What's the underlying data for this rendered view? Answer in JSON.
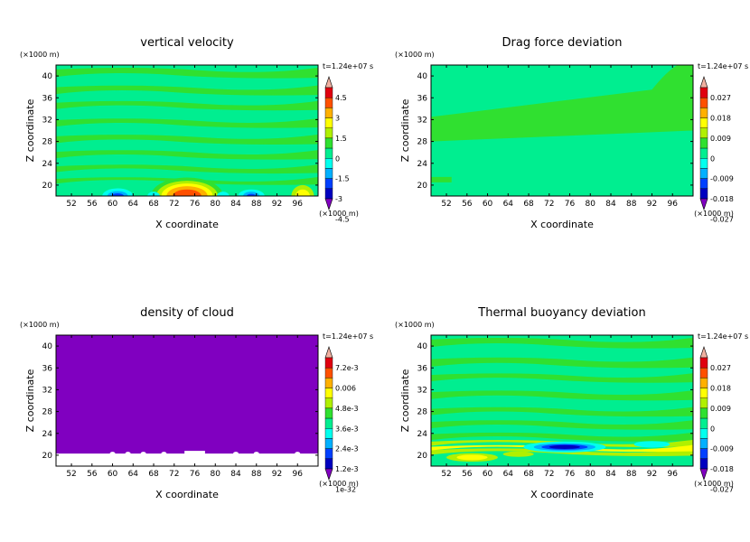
{
  "chart_data": [
    {
      "type": "heatmap",
      "title": "vertical velocity",
      "xlabel": "X coordinate",
      "ylabel": "Z coordinate",
      "x_unit": "(×1000 m)",
      "y_unit": "(×1000 m)",
      "time_label": "t=1.24e+07 s",
      "xlim": [
        49,
        100
      ],
      "ylim": [
        18,
        42
      ],
      "x_ticks": [
        "52",
        "56",
        "60",
        "64",
        "68",
        "72",
        "76",
        "80",
        "84",
        "88",
        "92",
        "96"
      ],
      "y_ticks": [
        "20",
        "24",
        "28",
        "32",
        "36",
        "40"
      ],
      "colorbar_labels": [
        "4.5",
        "3",
        "1.5",
        "0",
        "-1.5",
        "-3",
        "-4.5"
      ],
      "colorbar_colors": [
        "#f0b0a0",
        "#e00010",
        "#ff5000",
        "#ffb000",
        "#ffff00",
        "#b0f000",
        "#30e030",
        "#00ee90",
        "#00ffee",
        "#00b0ff",
        "#0040ff",
        "#0000c0",
        "#8000c0"
      ],
      "background_color": "#00ee90",
      "bands": [
        {
          "z": 40.6,
          "h": 1.2,
          "color": "#30e030"
        },
        {
          "z": 37.4,
          "h": 1.1,
          "color": "#30e030"
        },
        {
          "z": 34.6,
          "h": 1.0,
          "color": "#30e030"
        },
        {
          "z": 31.4,
          "h": 1.0,
          "color": "#30e030"
        },
        {
          "z": 28.4,
          "h": 1.1,
          "color": "#30e030"
        },
        {
          "z": 25.6,
          "h": 1.0,
          "color": "#30e030"
        },
        {
          "z": 23.0,
          "h": 0.9,
          "color": "#30e030"
        },
        {
          "z": 20.8,
          "h": 0.7,
          "color": "#30e030"
        }
      ],
      "blobs": [
        {
          "x": 74.5,
          "z": 18.0,
          "rx": 7.0,
          "rz": 3.4,
          "color": "#30e030"
        },
        {
          "x": 74.5,
          "z": 18.0,
          "rx": 6.0,
          "rz": 2.8,
          "color": "#b0f000"
        },
        {
          "x": 74.5,
          "z": 18.0,
          "rx": 5.0,
          "rz": 2.3,
          "color": "#ffff00"
        },
        {
          "x": 74.5,
          "z": 18.0,
          "rx": 4.0,
          "rz": 1.8,
          "color": "#ffb000"
        },
        {
          "x": 74.5,
          "z": 18.0,
          "rx": 2.8,
          "rz": 1.2,
          "color": "#ff5000"
        },
        {
          "x": 61.0,
          "z": 18.0,
          "rx": 3.0,
          "rz": 1.4,
          "color": "#00ffee"
        },
        {
          "x": 61.0,
          "z": 18.0,
          "rx": 2.0,
          "rz": 0.9,
          "color": "#00b0ff"
        },
        {
          "x": 61.0,
          "z": 18.0,
          "rx": 1.2,
          "rz": 0.5,
          "color": "#0040ff"
        },
        {
          "x": 87.0,
          "z": 18.0,
          "rx": 2.6,
          "rz": 1.2,
          "color": "#00ffee"
        },
        {
          "x": 87.0,
          "z": 18.0,
          "rx": 1.6,
          "rz": 0.8,
          "color": "#00b0ff"
        },
        {
          "x": 87.0,
          "z": 18.0,
          "rx": 0.9,
          "rz": 0.4,
          "color": "#0040ff"
        },
        {
          "x": 97.0,
          "z": 18.0,
          "rx": 2.2,
          "rz": 2.0,
          "color": "#b0f000"
        },
        {
          "x": 97.0,
          "z": 18.0,
          "rx": 1.4,
          "rz": 1.2,
          "color": "#ffff00"
        },
        {
          "x": 68.0,
          "z": 18.0,
          "rx": 1.2,
          "rz": 0.8,
          "color": "#00ffee"
        },
        {
          "x": 81.5,
          "z": 18.0,
          "rx": 1.2,
          "rz": 0.8,
          "color": "#00ffee"
        }
      ]
    },
    {
      "type": "heatmap",
      "title": "Drag force deviation",
      "xlabel": "X coordinate",
      "ylabel": "Z coordinate",
      "x_unit": "(×1000 m)",
      "y_unit": "(×1000 m)",
      "time_label": "t=1.24e+07 s",
      "xlim": [
        49,
        100
      ],
      "ylim": [
        18,
        42
      ],
      "x_ticks": [
        "52",
        "56",
        "60",
        "64",
        "68",
        "72",
        "76",
        "80",
        "84",
        "88",
        "92",
        "96"
      ],
      "y_ticks": [
        "20",
        "24",
        "28",
        "32",
        "36",
        "40"
      ],
      "colorbar_labels": [
        "0.027",
        "0.018",
        "0.009",
        "0",
        "-0.009",
        "-0.018",
        "-0.027"
      ],
      "colorbar_colors": [
        "#f0b0a0",
        "#e00010",
        "#ff5000",
        "#ffb000",
        "#ffff00",
        "#b0f000",
        "#30e030",
        "#00ee90",
        "#00ffee",
        "#00b0ff",
        "#0040ff",
        "#0000c0",
        "#8000c0"
      ],
      "background_color": "#00ee90",
      "bands": [],
      "blobs": []
    },
    {
      "type": "heatmap",
      "title": "density of cloud",
      "xlabel": "X coordinate",
      "ylabel": "Z coordinate",
      "x_unit": "(×1000 m)",
      "y_unit": "(×1000 m)",
      "time_label": "t=1.24e+07 s",
      "xlim": [
        49,
        100
      ],
      "ylim": [
        18,
        42
      ],
      "x_ticks": [
        "52",
        "56",
        "60",
        "64",
        "68",
        "72",
        "76",
        "80",
        "84",
        "88",
        "92",
        "96"
      ],
      "y_ticks": [
        "20",
        "24",
        "28",
        "32",
        "36",
        "40"
      ],
      "colorbar_labels": [
        "7.2e-3",
        "0.006",
        "4.8e-3",
        "3.6e-3",
        "2.4e-3",
        "1.2e-3",
        "1e-32"
      ],
      "colorbar_colors": [
        "#f0b0a0",
        "#e00010",
        "#ff5000",
        "#ffb000",
        "#ffff00",
        "#b0f000",
        "#30e030",
        "#00ee90",
        "#00ffee",
        "#00b0ff",
        "#0040ff",
        "#0000c0",
        "#8000c0"
      ],
      "background_color": "#8000c0",
      "bands": [],
      "blobs": [],
      "empty_below_z": 20.3
    },
    {
      "type": "heatmap",
      "title": "Thermal buoyancy deviation",
      "xlabel": "X coordinate",
      "ylabel": "Z coordinate",
      "x_unit": "(×1000 m)",
      "y_unit": "(×1000 m)",
      "time_label": "t=1.24e+07 s",
      "xlim": [
        49,
        100
      ],
      "ylim": [
        18,
        42
      ],
      "x_ticks": [
        "52",
        "56",
        "60",
        "64",
        "68",
        "72",
        "76",
        "80",
        "84",
        "88",
        "92",
        "96"
      ],
      "y_ticks": [
        "20",
        "24",
        "28",
        "32",
        "36",
        "40"
      ],
      "colorbar_labels": [
        "0.027",
        "0.018",
        "0.009",
        "0",
        "-0.009",
        "-0.018",
        "-0.027"
      ],
      "colorbar_colors": [
        "#f0b0a0",
        "#e00010",
        "#ff5000",
        "#ffb000",
        "#ffff00",
        "#b0f000",
        "#30e030",
        "#00ee90",
        "#00ffee",
        "#00b0ff",
        "#0040ff",
        "#0000c0",
        "#8000c0"
      ],
      "background_color": "#00ee90",
      "bands": [
        {
          "z": 40.6,
          "h": 1.2,
          "color": "#30e030"
        },
        {
          "z": 37.0,
          "h": 1.2,
          "color": "#30e030"
        },
        {
          "z": 34.2,
          "h": 1.0,
          "color": "#30e030"
        },
        {
          "z": 31.0,
          "h": 1.1,
          "color": "#30e030"
        },
        {
          "z": 28.0,
          "h": 1.0,
          "color": "#30e030"
        },
        {
          "z": 25.6,
          "h": 1.0,
          "color": "#30e030"
        },
        {
          "z": 23.4,
          "h": 0.9,
          "color": "#30e030"
        },
        {
          "z": 22.2,
          "h": 0.6,
          "color": "#b0f000"
        },
        {
          "z": 20.6,
          "h": 0.7,
          "color": "#b0f000"
        },
        {
          "z": 21.3,
          "h": 0.5,
          "color": "#ffff00"
        }
      ],
      "blobs": [
        {
          "x": 75.0,
          "z": 21.5,
          "rx": 8.0,
          "rz": 1.0,
          "color": "#00ffee"
        },
        {
          "x": 75.0,
          "z": 21.5,
          "rx": 6.0,
          "rz": 0.7,
          "color": "#00b0ff"
        },
        {
          "x": 75.0,
          "z": 21.5,
          "rx": 4.5,
          "rz": 0.5,
          "color": "#0040ff"
        },
        {
          "x": 75.0,
          "z": 21.5,
          "rx": 3.0,
          "rz": 0.35,
          "color": "#0000c0"
        },
        {
          "x": 92.0,
          "z": 22.0,
          "rx": 3.5,
          "rz": 0.6,
          "color": "#00ffee"
        },
        {
          "x": 57.0,
          "z": 19.6,
          "rx": 5.0,
          "rz": 0.8,
          "color": "#b0f000"
        },
        {
          "x": 57.0,
          "z": 19.6,
          "rx": 3.0,
          "rz": 0.5,
          "color": "#ffff00"
        },
        {
          "x": 66.0,
          "z": 20.2,
          "rx": 3.0,
          "rz": 0.5,
          "color": "#b0f000"
        }
      ]
    }
  ]
}
